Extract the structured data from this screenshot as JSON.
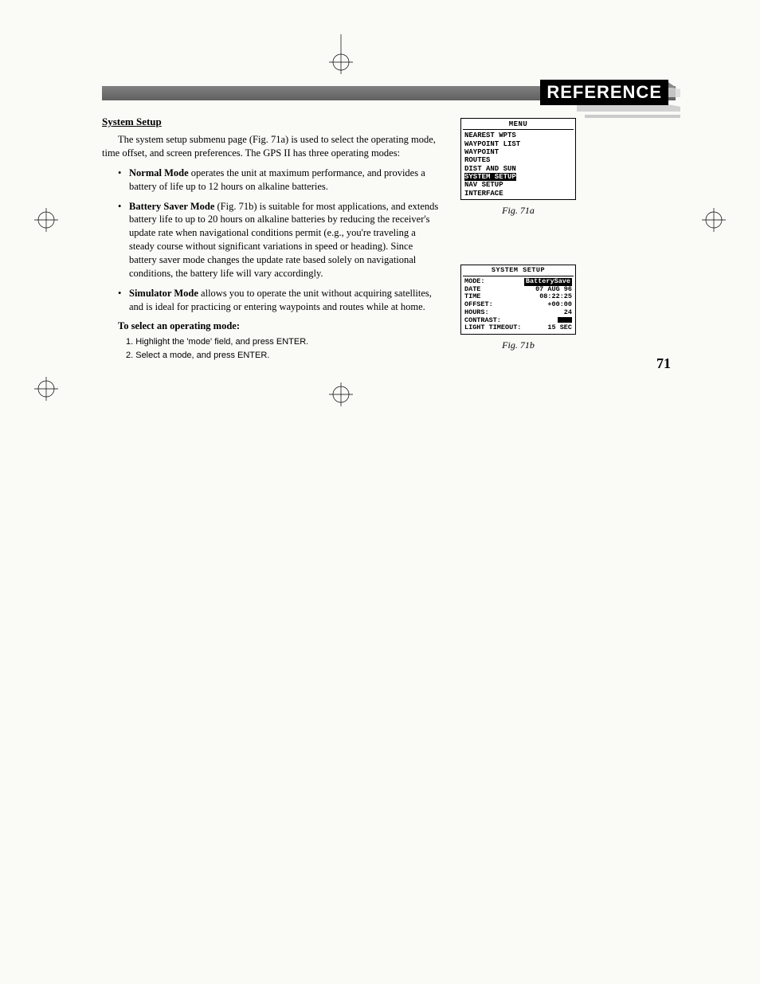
{
  "header": {
    "reference_label": "REFERENCE"
  },
  "section": {
    "title": "System Setup",
    "intro": "The system setup submenu page (Fig. 71a) is used to select the operating mode, time offset, and screen preferences. The GPS II has three operating modes:",
    "bullets": [
      {
        "label": "Normal Mode",
        "text": " operates the unit at maximum performance, and provides a battery of life up to 12 hours on alkaline batteries."
      },
      {
        "label": "Battery Saver Mode",
        "text": " (Fig. 71b) is suitable for most applications, and extends battery life to up to 20 hours on alkaline batteries by reducing the receiver's update rate when navigational conditions permit (e.g., you're traveling a steady course without significant variations in speed or heading). Since battery saver mode changes the update rate based solely on navigational conditions, the battery life will vary accordingly."
      },
      {
        "label": "Simulator Mode",
        "text": " allows you to operate the unit without acquiring satellites, and is ideal for practicing or entering waypoints and routes while at home."
      }
    ],
    "instruction_heading": "To select an operating mode:",
    "steps": [
      "1. Highlight the 'mode' field, and press ENTER.",
      "2. Select a mode, and press ENTER."
    ]
  },
  "figure_a": {
    "caption": "Fig. 71a",
    "title": "MENU",
    "items": [
      "NEAREST WPTS",
      "WAYPOINT LIST",
      "WAYPOINT",
      "ROUTES",
      "DIST AND SUN",
      "SYSTEM SETUP",
      "NAV SETUP",
      "INTERFACE"
    ],
    "highlight_index": 5
  },
  "figure_b": {
    "caption": "Fig. 71b",
    "title": "SYSTEM SETUP",
    "rows": [
      {
        "label": "MODE:",
        "value": "BatterySave",
        "highlight": true
      },
      {
        "label": "DATE",
        "value": "07 AUG 96"
      },
      {
        "label": "TIME",
        "value": "08:22:25"
      },
      {
        "label": "OFFSET:",
        "value": "+00:00"
      },
      {
        "label": "HOURS:",
        "value": "24"
      },
      {
        "label": "CONTRAST:",
        "value": ""
      },
      {
        "label": "LIGHT TIMEOUT:",
        "value": "15 SEC"
      }
    ]
  },
  "page_number": "71"
}
